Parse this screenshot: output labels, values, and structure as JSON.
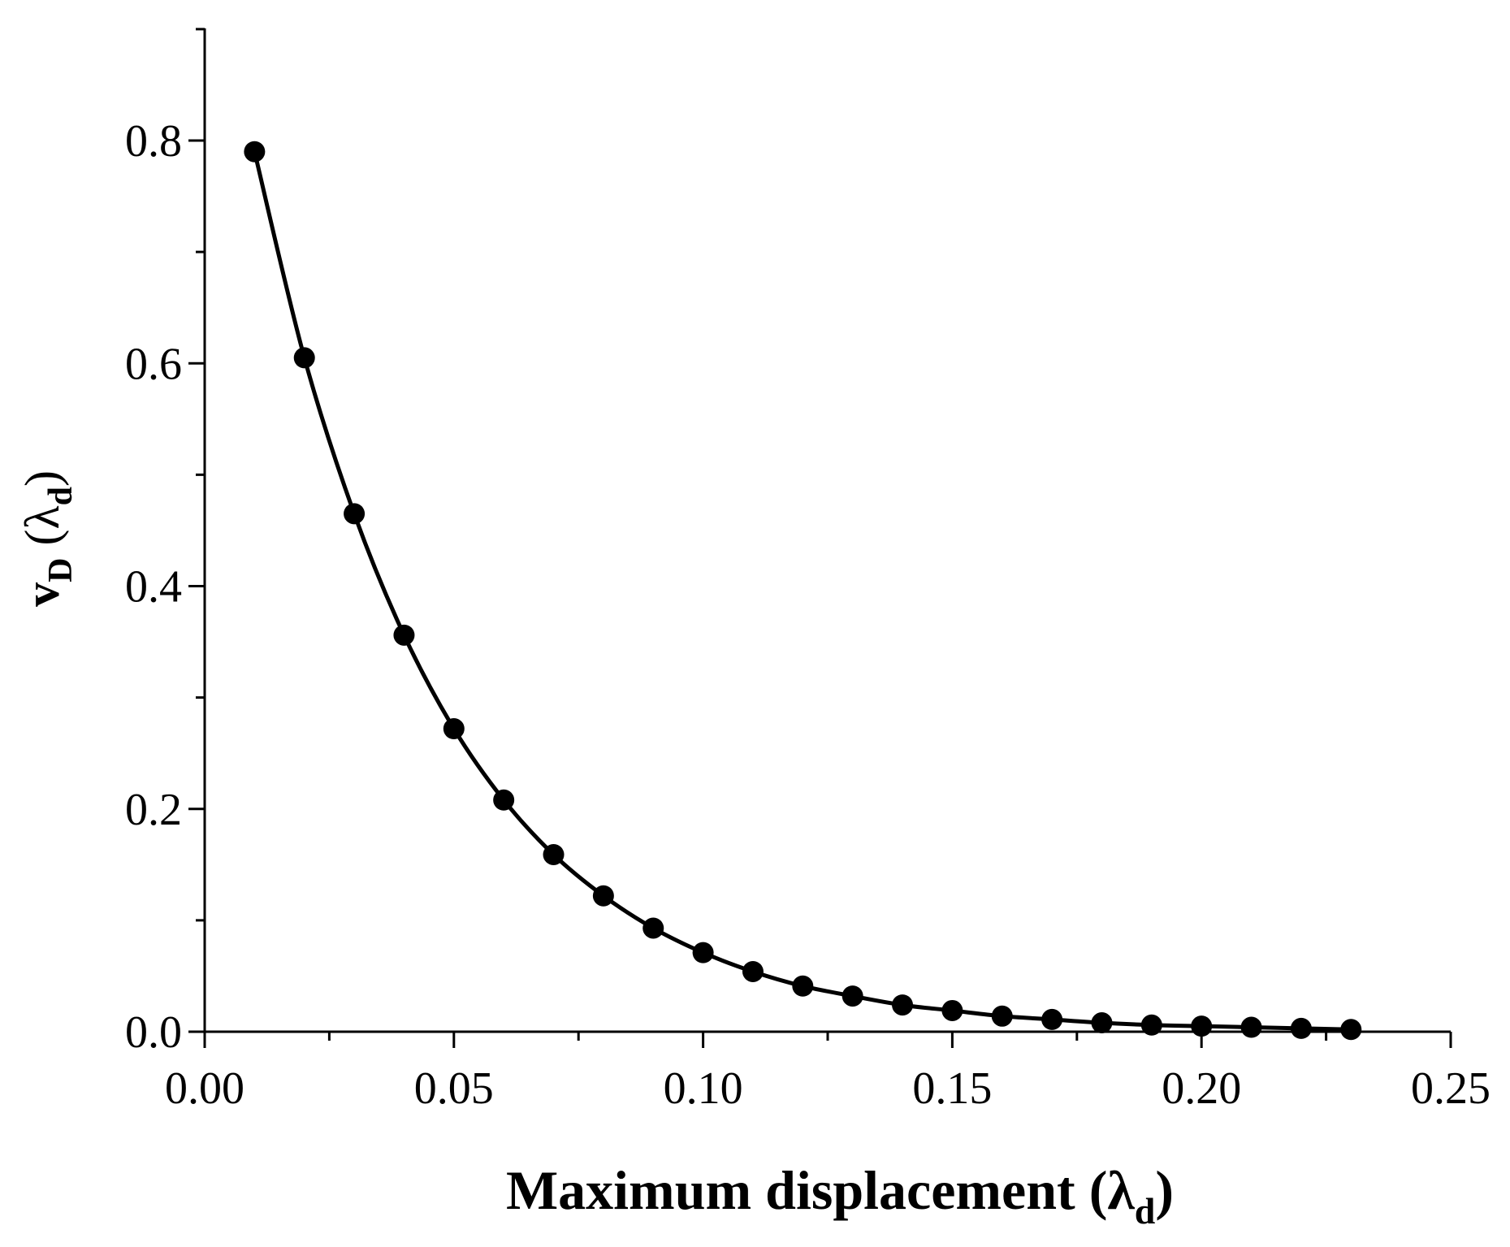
{
  "chart_data": {
    "type": "scatter",
    "title": "",
    "xlabel": {
      "main": "Maximum displacement (λ",
      "sub": "d",
      "close": ")"
    },
    "ylabel": {
      "main": "v",
      "sub1": "D",
      "mid": " (λ",
      "sub2": "d",
      "close": ")"
    },
    "xlim": [
      0.0,
      0.25
    ],
    "ylim": [
      0.0,
      0.8
    ],
    "y_axis_top": 0.9,
    "xticks": [
      0.0,
      0.05,
      0.1,
      0.15,
      0.2,
      0.25
    ],
    "xtick_labels": [
      "0.00",
      "0.05",
      "0.10",
      "0.15",
      "0.20",
      "0.25"
    ],
    "yticks": [
      0.0,
      0.2,
      0.4,
      0.6,
      0.8
    ],
    "ytick_labels": [
      "0.0",
      "0.2",
      "0.4",
      "0.6",
      "0.8"
    ],
    "grid": false,
    "legend": "none",
    "series": [
      {
        "marker": "filled-circle",
        "line": "smooth",
        "color": "#000000",
        "x": [
          0.01,
          0.02,
          0.03,
          0.04,
          0.05,
          0.06,
          0.07,
          0.08,
          0.09,
          0.1,
          0.11,
          0.12,
          0.13,
          0.14,
          0.15,
          0.16,
          0.17,
          0.18,
          0.19,
          0.2,
          0.21,
          0.22,
          0.23
        ],
        "y": [
          0.79,
          0.605,
          0.465,
          0.356,
          0.272,
          0.208,
          0.159,
          0.122,
          0.093,
          0.071,
          0.054,
          0.041,
          0.032,
          0.024,
          0.019,
          0.014,
          0.011,
          0.008,
          0.006,
          0.005,
          0.004,
          0.003,
          0.002
        ]
      }
    ]
  }
}
